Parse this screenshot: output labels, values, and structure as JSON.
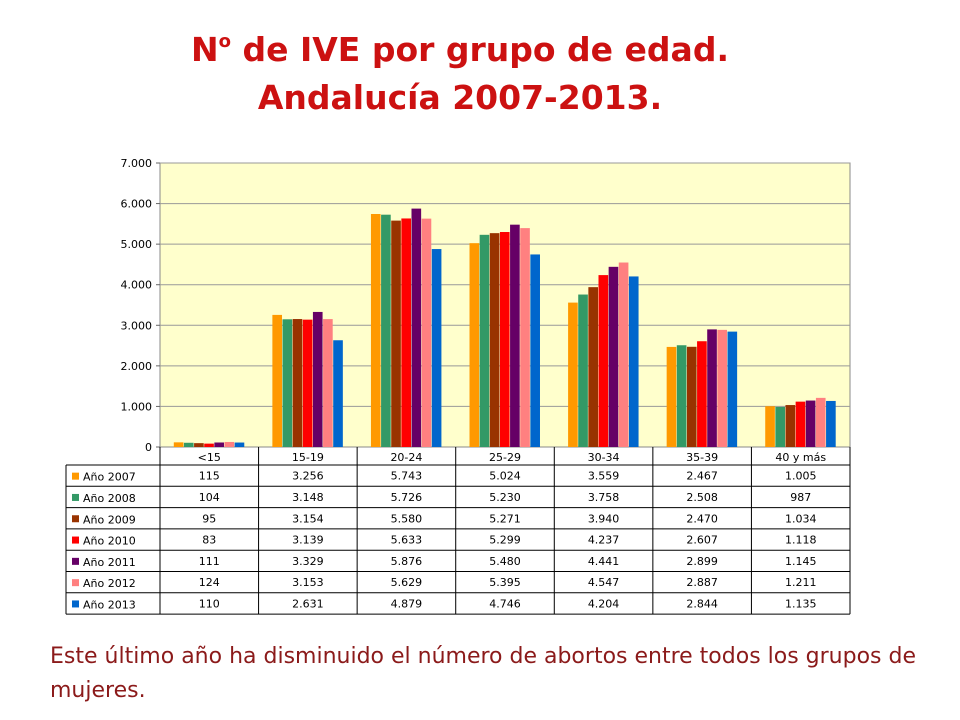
{
  "title": {
    "line1_main": "N",
    "line1_sup": "o",
    "line1_rest": " de IVE por grupo de edad.",
    "line2": "Andalucía 2007-2013."
  },
  "caption": "Este último año ha disminuido el número de abortos entre todos los grupos de mujeres.",
  "chart_data": {
    "type": "bar",
    "categories": [
      "<15",
      "15-19",
      "20-24",
      "25-29",
      "30-34",
      "35-39",
      "40 y más"
    ],
    "ylim": [
      0,
      7000
    ],
    "yticks": [
      0,
      1000,
      2000,
      3000,
      4000,
      5000,
      6000,
      7000
    ],
    "ytick_labels": [
      "0",
      "1.000",
      "2.000",
      "3.000",
      "4.000",
      "5.000",
      "6.000",
      "7.000"
    ],
    "grid": true,
    "legend": "data-table-left",
    "plot_background": "#ffffcc",
    "series": [
      {
        "name": "Año 2007",
        "color": "#ff9900",
        "values": [
          115,
          3256,
          5743,
          5024,
          3559,
          2467,
          1005
        ],
        "labels": [
          "115",
          "3.256",
          "5.743",
          "5.024",
          "3.559",
          "2.467",
          "1.005"
        ]
      },
      {
        "name": "Año 2008",
        "color": "#339966",
        "values": [
          104,
          3148,
          5726,
          5230,
          3758,
          2508,
          987
        ],
        "labels": [
          "104",
          "3.148",
          "5.726",
          "5.230",
          "3.758",
          "2.508",
          "987"
        ]
      },
      {
        "name": "Año 2009",
        "color": "#993300",
        "values": [
          95,
          3154,
          5580,
          5271,
          3940,
          2470,
          1034
        ],
        "labels": [
          "95",
          "3.154",
          "5.580",
          "5.271",
          "3.940",
          "2.470",
          "1.034"
        ]
      },
      {
        "name": "Año 2010",
        "color": "#ff0000",
        "values": [
          83,
          3139,
          5633,
          5299,
          4237,
          2607,
          1118
        ],
        "labels": [
          "83",
          "3.139",
          "5.633",
          "5.299",
          "4.237",
          "2.607",
          "1.118"
        ]
      },
      {
        "name": "Año 2011",
        "color": "#660066",
        "values": [
          111,
          3329,
          5876,
          5480,
          4441,
          2899,
          1145
        ],
        "labels": [
          "111",
          "3.329",
          "5.876",
          "5.480",
          "4.441",
          "2.899",
          "1.145"
        ]
      },
      {
        "name": "Año 2012",
        "color": "#ff8080",
        "values": [
          124,
          3153,
          5629,
          5395,
          4547,
          2887,
          1211
        ],
        "labels": [
          "124",
          "3.153",
          "5.629",
          "5.395",
          "4.547",
          "2.887",
          "1.211"
        ]
      },
      {
        "name": "Año 2013",
        "color": "#0066cc",
        "values": [
          110,
          2631,
          4879,
          4746,
          4204,
          2844,
          1135
        ],
        "labels": [
          "110",
          "2.631",
          "4.879",
          "4.746",
          "4.204",
          "2.844",
          "1.135"
        ]
      }
    ]
  }
}
